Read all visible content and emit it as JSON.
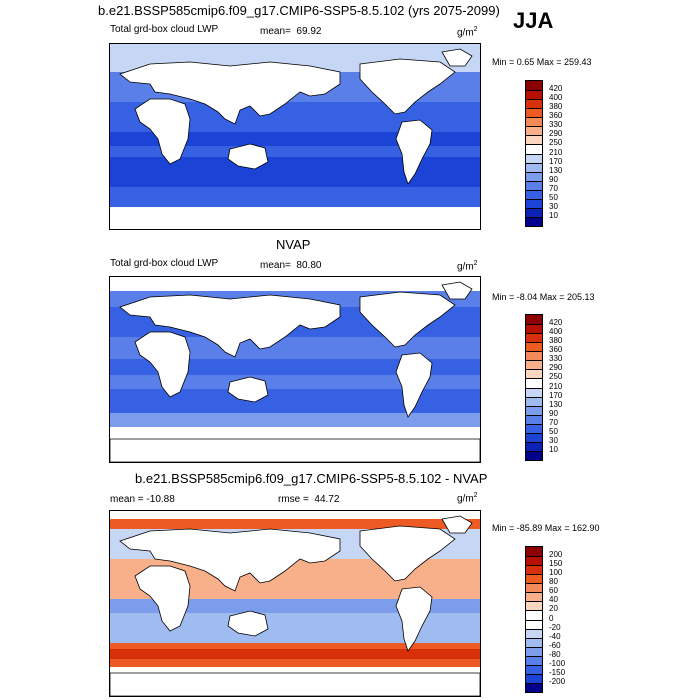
{
  "season": "JJA",
  "panels": [
    {
      "title": "b.e21.BSSP585cmip6.f09_g17.CMIP6-SSP5-8.5.102 (yrs 2075-2099)",
      "field_label": "Total grd-box cloud LWP",
      "stat_label": "mean=",
      "stat_value": "69.92",
      "stat2_label": "",
      "stat2_value": "",
      "units": "g/m",
      "units_sup": "2",
      "minmax": "Min =   0.65 Max = 259.43",
      "colorbar": [
        "420",
        "400",
        "380",
        "360",
        "330",
        "290",
        "250",
        "210",
        "170",
        "130",
        "90",
        "70",
        "50",
        "30",
        "10"
      ],
      "colors": [
        "#8b0000",
        "#b81000",
        "#d8300a",
        "#ee5a24",
        "#f48a5a",
        "#f7b08a",
        "#fad6be",
        "#ffffff",
        "#c6d7f5",
        "#a0bbf0",
        "#7c9dec",
        "#5a7fe8",
        "#3661e2",
        "#1b43d6",
        "#0a22b8",
        "#00008b"
      ]
    },
    {
      "title": "NVAP",
      "field_label": "Total grd-box cloud LWP",
      "stat_label": "mean=",
      "stat_value": "80.80",
      "stat2_label": "",
      "stat2_value": "",
      "units": "g/m",
      "units_sup": "2",
      "minmax": "Min =  -8.04 Max = 205.13",
      "colorbar": [
        "420",
        "400",
        "380",
        "360",
        "330",
        "290",
        "250",
        "210",
        "170",
        "130",
        "90",
        "70",
        "50",
        "30",
        "10"
      ],
      "colors": [
        "#8b0000",
        "#b81000",
        "#d8300a",
        "#ee5a24",
        "#f48a5a",
        "#f7b08a",
        "#fad6be",
        "#ffffff",
        "#c6d7f5",
        "#a0bbf0",
        "#7c9dec",
        "#5a7fe8",
        "#3661e2",
        "#1b43d6",
        "#0a22b8",
        "#00008b"
      ]
    },
    {
      "title": "b.e21.BSSP585cmip6.f09_g17.CMIP6-SSP5-8.5.102 - NVAP",
      "field_label": "",
      "stat_label": "mean =",
      "stat_value": "-10.88",
      "stat2_label": "rmse =",
      "stat2_value": "44.72",
      "units": "g/m",
      "units_sup": "2",
      "minmax": "Min = -85.89 Max = 162.90",
      "colorbar": [
        "200",
        "150",
        "100",
        "80",
        "60",
        "40",
        "20",
        "0",
        "-20",
        "-40",
        "-60",
        "-80",
        "-100",
        "-150",
        "-200"
      ],
      "colors": [
        "#8b0000",
        "#b81000",
        "#d8300a",
        "#ee5a24",
        "#f48a5a",
        "#f7b08a",
        "#fad6be",
        "#ffffff",
        "#ffffff",
        "#c6d7f5",
        "#a0bbf0",
        "#7c9dec",
        "#5a7fe8",
        "#3661e2",
        "#1b43d6",
        "#00008b"
      ]
    }
  ]
}
